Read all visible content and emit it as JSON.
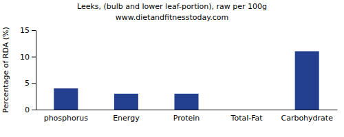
{
  "chart_data": {
    "type": "bar",
    "title": "Leeks, (bulb and lower leaf-portion), raw per 100g",
    "subtitle": "www.dietandfitnesstoday.com",
    "y_label": "Percentage of RDA (%)",
    "categories": [
      "phosphorus",
      "Energy",
      "Protein",
      "Total-Fat",
      "Carbohydrate"
    ],
    "values": [
      4,
      3,
      3,
      0,
      11
    ],
    "color": "#233f8f",
    "ylim": [
      0,
      15
    ],
    "yticks": [
      0,
      5,
      10,
      15
    ],
    "grid": false
  }
}
